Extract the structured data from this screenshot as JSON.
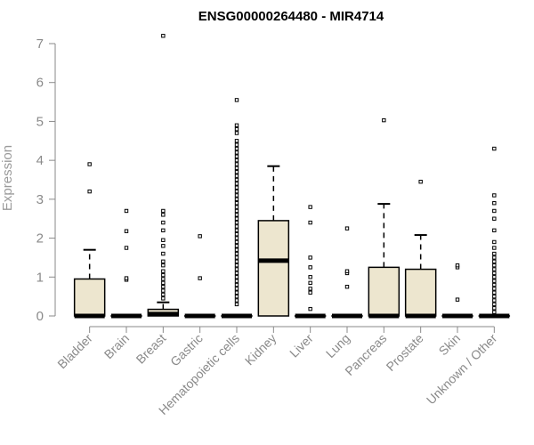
{
  "chart_data": {
    "type": "boxplot",
    "title": "ENSG00000264480 - MIR4714",
    "xlabel": "",
    "ylabel": "Expression",
    "ylim": [
      0,
      7
    ],
    "yticks": [
      0,
      1,
      2,
      3,
      4,
      5,
      6,
      7
    ],
    "grid": false,
    "legend": "none",
    "box_fill": "#ede6cf",
    "categories": [
      "Bladder",
      "Brain",
      "Breast",
      "Gastric",
      "Hematopoietic cells",
      "Kidney",
      "Liver",
      "Lung",
      "Pancreas",
      "Prostate",
      "Skin",
      "Unknown / Other"
    ],
    "boxes": [
      {
        "label": "Bladder",
        "min": 0,
        "q1": 0,
        "median": 0,
        "q3": 0.95,
        "max": 1.7,
        "outliers": [
          3.2,
          3.9
        ]
      },
      {
        "label": "Brain",
        "min": 0,
        "q1": 0,
        "median": 0,
        "q3": 0,
        "max": 0,
        "outliers": [
          0.93,
          0.97,
          1.75,
          2.18,
          2.7
        ]
      },
      {
        "label": "Breast",
        "min": 0,
        "q1": 0,
        "median": 0.05,
        "q3": 0.17,
        "max": 0.35,
        "outliers": [
          0.45,
          0.55,
          0.65,
          0.75,
          0.85,
          0.95,
          1.05,
          1.15,
          1.3,
          1.4,
          1.6,
          1.8,
          1.95,
          2.2,
          2.4,
          2.6,
          2.7,
          7.2
        ]
      },
      {
        "label": "Gastric",
        "min": 0,
        "q1": 0,
        "median": 0,
        "q3": 0,
        "max": 0,
        "outliers": [
          0.97,
          2.05
        ]
      },
      {
        "label": "Hematopoietic cells",
        "min": 0,
        "q1": 0,
        "median": 0,
        "q3": 0,
        "max": 0,
        "outliers": [
          0.3,
          0.4,
          0.5,
          0.6,
          0.7,
          0.8,
          0.9,
          1.0,
          1.1,
          1.2,
          1.3,
          1.4,
          1.5,
          1.6,
          1.7,
          1.8,
          1.9,
          2.0,
          2.1,
          2.2,
          2.3,
          2.4,
          2.5,
          2.6,
          2.7,
          2.8,
          2.9,
          3.0,
          3.1,
          3.2,
          3.3,
          3.4,
          3.5,
          3.6,
          3.7,
          3.8,
          3.9,
          4.0,
          4.1,
          4.2,
          4.3,
          4.4,
          4.5,
          4.7,
          4.8,
          4.9,
          5.55
        ]
      },
      {
        "label": "Kidney",
        "min": 0,
        "q1": 0,
        "median": 1.42,
        "q3": 2.45,
        "max": 3.85,
        "outliers": []
      },
      {
        "label": "Liver",
        "min": 0,
        "q1": 0,
        "median": 0,
        "q3": 0,
        "max": 0,
        "outliers": [
          0.18,
          0.6,
          0.7,
          0.85,
          1.0,
          1.25,
          1.5,
          2.4,
          2.8
        ]
      },
      {
        "label": "Lung",
        "min": 0,
        "q1": 0,
        "median": 0,
        "q3": 0,
        "max": 0,
        "outliers": [
          0.75,
          1.1,
          1.15,
          2.25
        ]
      },
      {
        "label": "Pancreas",
        "min": 0,
        "q1": 0,
        "median": 0,
        "q3": 1.25,
        "max": 2.88,
        "outliers": [
          5.03
        ]
      },
      {
        "label": "Prostate",
        "min": 0,
        "q1": 0,
        "median": 0,
        "q3": 1.2,
        "max": 2.08,
        "outliers": [
          3.45
        ]
      },
      {
        "label": "Skin",
        "min": 0,
        "q1": 0,
        "median": 0,
        "q3": 0,
        "max": 0,
        "outliers": [
          0.42,
          1.25,
          1.3
        ]
      },
      {
        "label": "Unknown / Other",
        "min": 0,
        "q1": 0,
        "median": 0,
        "q3": 0,
        "max": 0,
        "outliers": [
          0.1,
          0.2,
          0.3,
          0.4,
          0.5,
          0.6,
          0.7,
          0.8,
          0.9,
          1.0,
          1.1,
          1.2,
          1.3,
          1.4,
          1.5,
          1.6,
          1.75,
          1.9,
          2.2,
          2.5,
          2.7,
          2.9,
          3.1,
          4.3
        ]
      }
    ]
  }
}
